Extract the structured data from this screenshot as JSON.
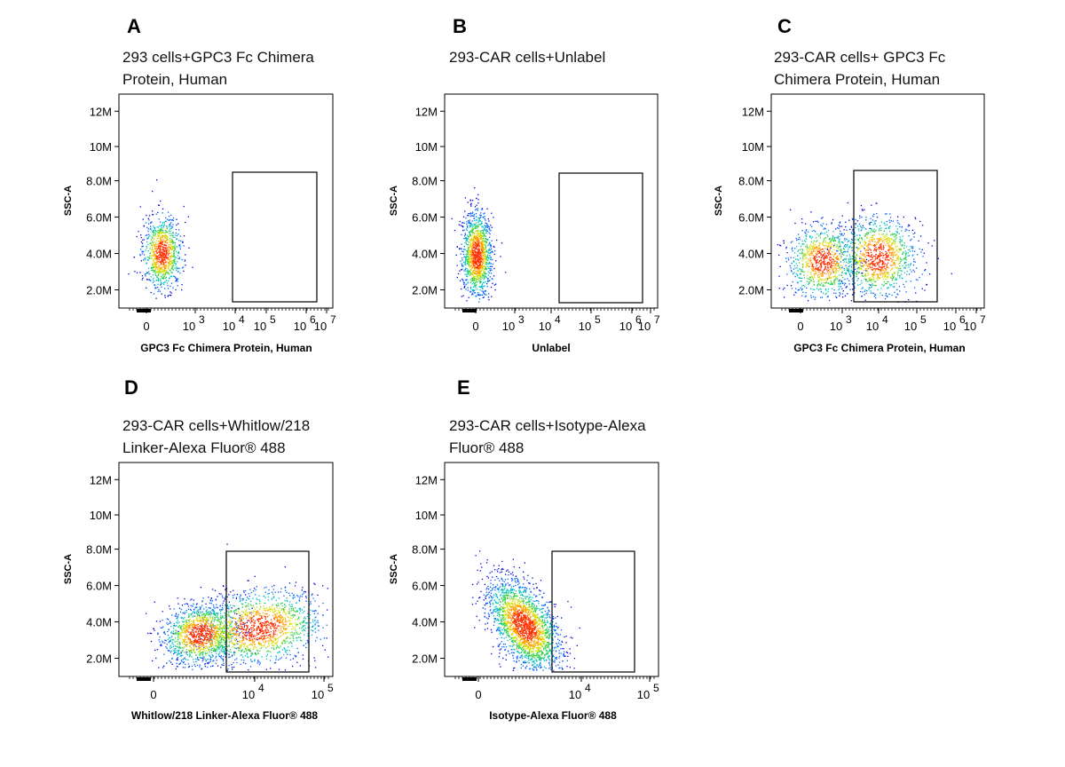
{
  "chart_data": [
    {
      "panel": "A",
      "type": "scatter",
      "title_lines": [
        "293 cells+GPC3 Fc Chimera",
        "Protein, Human"
      ],
      "xlabel": "GPC3 Fc Chimera Protein, Human",
      "ylabel": "SSC-A",
      "x_scale": "biexponential",
      "x_ticks": [
        "0",
        "10",
        "3",
        "10",
        "4",
        "10",
        "5",
        "10",
        "6",
        "10",
        "7"
      ],
      "x_tick_labels": [
        "0",
        "10^3",
        "10^4",
        "10^5",
        "10^6",
        "10^7"
      ],
      "y_ticks": [
        "2.0M",
        "4.0M",
        "6.0M",
        "8.0M",
        "10M",
        "12M"
      ],
      "y_range": [
        1500000,
        12800000
      ],
      "gate": {
        "x_min": "10^4",
        "x_max": "10^6.8",
        "y_min": 1400000,
        "y_max": 8600000
      },
      "populations": [
        {
          "x_center": "0",
          "y_center": 4000000,
          "count": 1000
        }
      ]
    },
    {
      "panel": "B",
      "type": "scatter",
      "title_lines": [
        "293-CAR cells+Unlabel"
      ],
      "xlabel": "Unlabel",
      "ylabel": "SSC-A",
      "x_scale": "biexponential",
      "x_ticks": [
        "0",
        "10",
        "3",
        "10",
        "4",
        "10",
        "5",
        "10",
        "6",
        "10",
        "7"
      ],
      "x_tick_labels": [
        "0",
        "10^3",
        "10^4",
        "10^5",
        "10^6",
        "10^7"
      ],
      "y_ticks": [
        "2.0M",
        "4.0M",
        "6.0M",
        "8.0M",
        "10M",
        "12M"
      ],
      "y_range": [
        1500000,
        12800000
      ],
      "gate": {
        "x_min": "10^4",
        "x_max": "10^6.8",
        "y_min": 1400000,
        "y_max": 8600000
      },
      "populations": [
        {
          "x_center": "0",
          "y_center": 3800000,
          "count": 1400
        }
      ]
    },
    {
      "panel": "C",
      "type": "scatter",
      "title_lines": [
        "293-CAR cells+ GPC3 Fc",
        "Chimera Protein, Human"
      ],
      "xlabel": "GPC3 Fc Chimera Protein, Human",
      "ylabel": "SSC-A",
      "x_scale": "biexponential",
      "x_ticks": [
        "0",
        "10",
        "3",
        "10",
        "4",
        "10",
        "5",
        "10",
        "6",
        "10",
        "7"
      ],
      "x_tick_labels": [
        "0",
        "10^3",
        "10^4",
        "10^5",
        "10^6",
        "10^7"
      ],
      "y_ticks": [
        "2.0M",
        "4.0M",
        "6.0M",
        "8.0M",
        "10M",
        "12M"
      ],
      "y_range": [
        1500000,
        12800000
      ],
      "gate": {
        "x_min": "10^3.6",
        "x_max": "10^5.8",
        "y_min": 1400000,
        "y_max": 8600000
      },
      "populations": [
        {
          "x_center": "10^3",
          "y_center": 3800000,
          "count": 900
        },
        {
          "x_center": "10^4",
          "y_center": 4000000,
          "count": 1100
        }
      ]
    },
    {
      "panel": "D",
      "type": "scatter",
      "title_lines": [
        "293-CAR cells+Whitlow/218",
        "Linker-Alexa Fluor® 488"
      ],
      "xlabel": "Whitlow/218 Linker-Alexa Fluor® 488",
      "ylabel": "SSC-A",
      "x_scale": "biexponential",
      "x_ticks": [
        "0",
        "10",
        "4",
        "10",
        "5"
      ],
      "x_tick_labels": [
        "0",
        "10^4",
        "10^5"
      ],
      "y_ticks": [
        "2.0M",
        "4.0M",
        "6.0M",
        "8.0M",
        "10M",
        "12M"
      ],
      "y_range": [
        1500000,
        12800000
      ],
      "gate": {
        "x_min": "10^3.7",
        "x_max": "10^4.9",
        "y_min": 1400000,
        "y_max": 8000000
      },
      "populations": [
        {
          "x_center": "10^3.4",
          "y_center": 3500000,
          "count": 1200
        },
        {
          "x_center": "10^4.1",
          "y_center": 4000000,
          "count": 1500
        }
      ]
    },
    {
      "panel": "E",
      "type": "scatter",
      "title_lines": [
        "293-CAR cells+Isotype-Alexa",
        "Fluor® 488"
      ],
      "xlabel": "Isotype-Alexa Fluor® 488",
      "ylabel": "SSC-A",
      "x_scale": "biexponential",
      "x_ticks": [
        "0",
        "10",
        "4",
        "10",
        "5"
      ],
      "x_tick_labels": [
        "0",
        "10^4",
        "10^5"
      ],
      "y_ticks": [
        "2.0M",
        "4.0M",
        "6.0M",
        "8.0M",
        "10M",
        "12M"
      ],
      "y_range": [
        1500000,
        12800000
      ],
      "gate": {
        "x_min": "10^3.7",
        "x_max": "10^4.9",
        "y_min": 1400000,
        "y_max": 8000000
      },
      "populations": [
        {
          "x_center": "10^3.3",
          "y_center": 4000000,
          "count": 2200
        }
      ]
    }
  ],
  "colors": {
    "density_low": "#0000cc",
    "density_mid": "#00cc66",
    "density_high": "#ff8800",
    "density_peak": "#ff2200",
    "axis": "#000000"
  }
}
